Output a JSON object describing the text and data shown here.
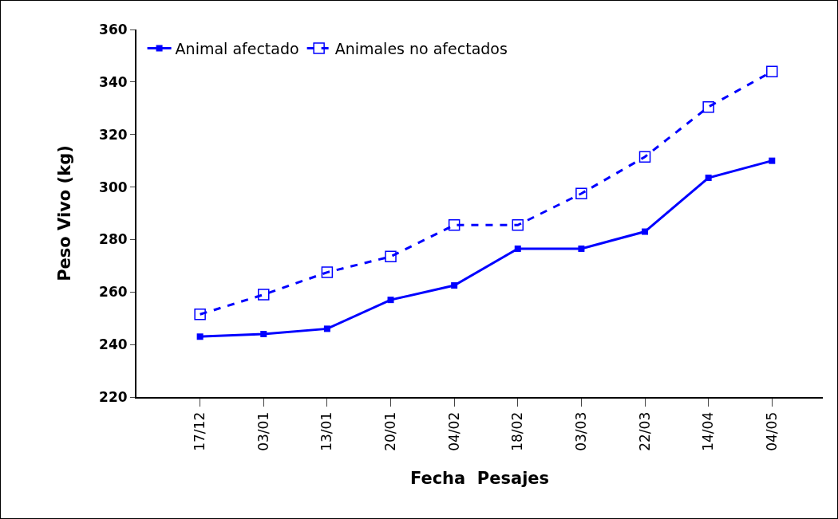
{
  "chart_data": {
    "type": "line",
    "xlabel": "Fecha  Pesajes",
    "ylabel": "Peso Vivo (kg)",
    "categories": [
      "17/12",
      "03/01",
      "13/01",
      "20/01",
      "04/02",
      "18/02",
      "03/03",
      "22/03",
      "14/04",
      "04/05"
    ],
    "series": [
      {
        "name": "Animal afectado",
        "color": "#0000ff",
        "marker": "square",
        "line_style": "solid",
        "values": [
          243,
          244,
          246,
          257,
          262.5,
          276.5,
          276.5,
          283,
          303.5,
          310
        ]
      },
      {
        "name": "Animales no afectados",
        "color": "#0000ff",
        "marker": "square",
        "line_style": "dashed",
        "values": [
          251.5,
          259,
          267.5,
          273.5,
          285.5,
          285.5,
          297.5,
          311.5,
          330.5,
          344
        ]
      }
    ],
    "ylim": [
      220,
      360
    ],
    "yticks": [
      220,
      240,
      260,
      280,
      300,
      320,
      340,
      360
    ],
    "grid": false,
    "legend": "top left"
  }
}
